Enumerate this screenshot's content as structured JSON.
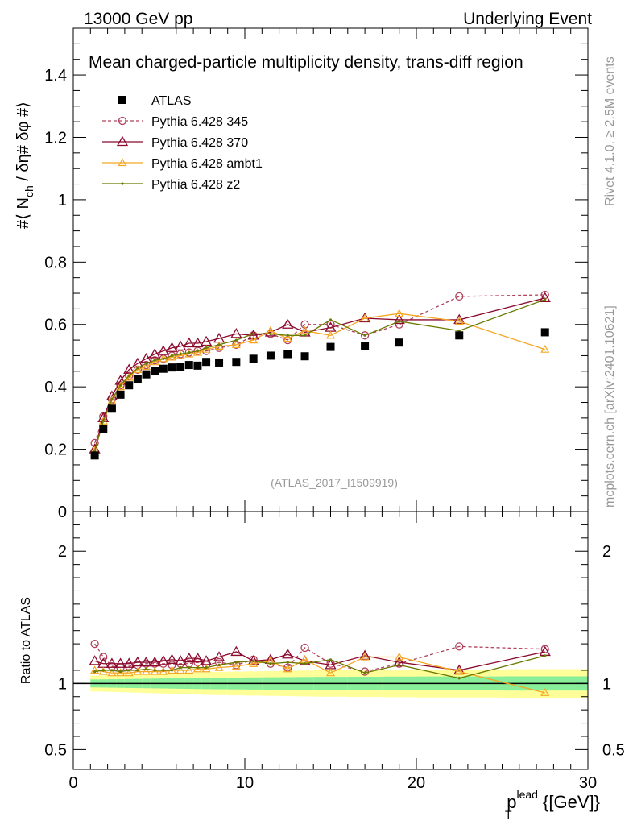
{
  "header": {
    "left": "13000 GeV pp",
    "right": "Underlying Event"
  },
  "side": {
    "rivet": "Rivet 4.1.0, ≥ 2.5M events",
    "mcplots": "mcplots.cern.ch [arXiv:2401.10621]"
  },
  "chart_data": [
    {
      "type": "scatter",
      "title": "Mean charged-particle multiplicity density, trans-diff region",
      "watermark": "(ATLAS_2017_I1509919)",
      "ylabel": "#⟨ N_ch / δη# δφ #⟩",
      "ylabel_parts": {
        "pre": "#⟨ N",
        "sub": "ch",
        "post": " / δη# δφ #⟩"
      },
      "xlim": [
        0,
        30
      ],
      "ylim": [
        0,
        1.55
      ],
      "x_ticks": [
        0,
        10,
        20,
        30
      ],
      "y_ticks": [
        0,
        0.2,
        0.4,
        0.6,
        0.8,
        1,
        1.2,
        1.4
      ],
      "y_tick_labels": [
        "0",
        "0.2",
        "0.4",
        "0.6",
        "0.8",
        "1",
        "1.2",
        "1.4"
      ],
      "legend_position": "top-left",
      "x": [
        1.25,
        1.75,
        2.25,
        2.75,
        3.25,
        3.75,
        4.25,
        4.75,
        5.25,
        5.75,
        6.25,
        6.75,
        7.25,
        7.75,
        8.5,
        9.5,
        10.5,
        11.5,
        12.5,
        13.5,
        15,
        17,
        19,
        22.5,
        27.5
      ],
      "series": [
        {
          "name": "ATLAS",
          "style": "data",
          "color": "#000000",
          "values": [
            0.18,
            0.265,
            0.33,
            0.375,
            0.405,
            0.425,
            0.44,
            0.45,
            0.458,
            0.462,
            0.465,
            0.47,
            0.468,
            0.48,
            0.478,
            0.48,
            0.49,
            0.5,
            0.505,
            0.498,
            0.528,
            0.532,
            0.542,
            0.565,
            0.575
          ]
        },
        {
          "name": "Pythia 6.428 345",
          "style": "circle-dashed",
          "color": "#b0405b",
          "values": [
            0.22,
            0.305,
            0.36,
            0.405,
            0.435,
            0.455,
            0.47,
            0.485,
            0.49,
            0.5,
            0.505,
            0.51,
            0.515,
            0.515,
            0.525,
            0.535,
            0.565,
            0.57,
            0.55,
            0.6,
            0.6,
            0.565,
            0.6,
            0.69,
            0.695
          ]
        },
        {
          "name": "Pythia 6.428 370",
          "style": "triangle",
          "color": "#8b0a2e",
          "values": [
            0.2,
            0.3,
            0.37,
            0.42,
            0.455,
            0.475,
            0.49,
            0.505,
            0.515,
            0.525,
            0.53,
            0.54,
            0.54,
            0.545,
            0.555,
            0.57,
            0.565,
            0.575,
            0.6,
            0.575,
            0.59,
            0.62,
            0.615,
            0.615,
            0.685
          ]
        },
        {
          "name": "Pythia 6.428 ambt1",
          "style": "triangle-small",
          "color": "#f5a623",
          "values": [
            0.195,
            0.29,
            0.355,
            0.4,
            0.43,
            0.455,
            0.465,
            0.48,
            0.49,
            0.495,
            0.5,
            0.505,
            0.51,
            0.52,
            0.53,
            0.535,
            0.55,
            0.58,
            0.555,
            0.58,
            0.565,
            0.62,
            0.635,
            0.61,
            0.52
          ]
        },
        {
          "name": "Pythia 6.428 z2",
          "style": "dot",
          "color": "#6b7a00",
          "values": [
            0.195,
            0.29,
            0.36,
            0.405,
            0.435,
            0.46,
            0.475,
            0.485,
            0.49,
            0.5,
            0.505,
            0.51,
            0.515,
            0.525,
            0.535,
            0.55,
            0.57,
            0.57,
            0.565,
            0.565,
            0.615,
            0.565,
            0.61,
            0.58,
            0.68
          ]
        }
      ]
    },
    {
      "type": "scatter",
      "title": "Ratio to ATLAS",
      "ylabel": "Ratio to ATLAS",
      "xlabel": "p_T^lead {[GeV]}",
      "xlabel_parts": {
        "main": "p",
        "sub": "T",
        "sup": "lead",
        "unit": " {[GeV]}"
      },
      "xlim": [
        0,
        30
      ],
      "ylim": [
        0.35,
        2.3
      ],
      "x_ticks": [
        0,
        10,
        20,
        30
      ],
      "x_tick_labels": [
        "0",
        "10",
        "20",
        "30"
      ],
      "y_ticks": [
        0.5,
        1,
        2
      ],
      "y_tick_labels": [
        "0.5",
        "1",
        "2"
      ],
      "x": [
        1.25,
        1.75,
        2.25,
        2.75,
        3.25,
        3.75,
        4.25,
        4.75,
        5.25,
        5.75,
        6.25,
        6.75,
        7.25,
        7.75,
        8.5,
        9.5,
        10.5,
        11.5,
        12.5,
        13.5,
        15,
        17,
        19,
        22.5,
        27.5
      ],
      "series": [
        {
          "name": "Pythia 6.428 345",
          "style": "circle-dashed",
          "color": "#b0405b",
          "values": [
            1.3,
            1.2,
            1.13,
            1.12,
            1.13,
            1.14,
            1.15,
            1.15,
            1.15,
            1.14,
            1.15,
            1.15,
            1.16,
            1.14,
            1.16,
            1.14,
            1.18,
            1.15,
            1.12,
            1.27,
            1.15,
            1.09,
            1.15,
            1.28,
            1.26
          ]
        },
        {
          "name": "Pythia 6.428 370",
          "style": "triangle",
          "color": "#8b0a2e",
          "values": [
            1.17,
            1.15,
            1.15,
            1.15,
            1.15,
            1.16,
            1.16,
            1.16,
            1.17,
            1.18,
            1.17,
            1.19,
            1.19,
            1.17,
            1.2,
            1.24,
            1.17,
            1.18,
            1.22,
            1.17,
            1.14,
            1.21,
            1.16,
            1.1,
            1.24
          ]
        },
        {
          "name": "Pythia 6.428 ambt1",
          "style": "triangle-small",
          "color": "#f5a623",
          "values": [
            1.1,
            1.09,
            1.08,
            1.08,
            1.08,
            1.09,
            1.09,
            1.09,
            1.09,
            1.1,
            1.1,
            1.1,
            1.11,
            1.11,
            1.12,
            1.13,
            1.15,
            1.17,
            1.11,
            1.18,
            1.08,
            1.2,
            1.2,
            1.09,
            0.93
          ]
        },
        {
          "name": "Pythia 6.428 z2",
          "style": "dot",
          "color": "#6b7a00",
          "values": [
            1.09,
            1.1,
            1.1,
            1.09,
            1.1,
            1.1,
            1.11,
            1.1,
            1.1,
            1.1,
            1.12,
            1.12,
            1.12,
            1.12,
            1.14,
            1.16,
            1.17,
            1.15,
            1.16,
            1.15,
            1.18,
            1.08,
            1.14,
            1.04,
            1.21
          ]
        }
      ]
    }
  ]
}
